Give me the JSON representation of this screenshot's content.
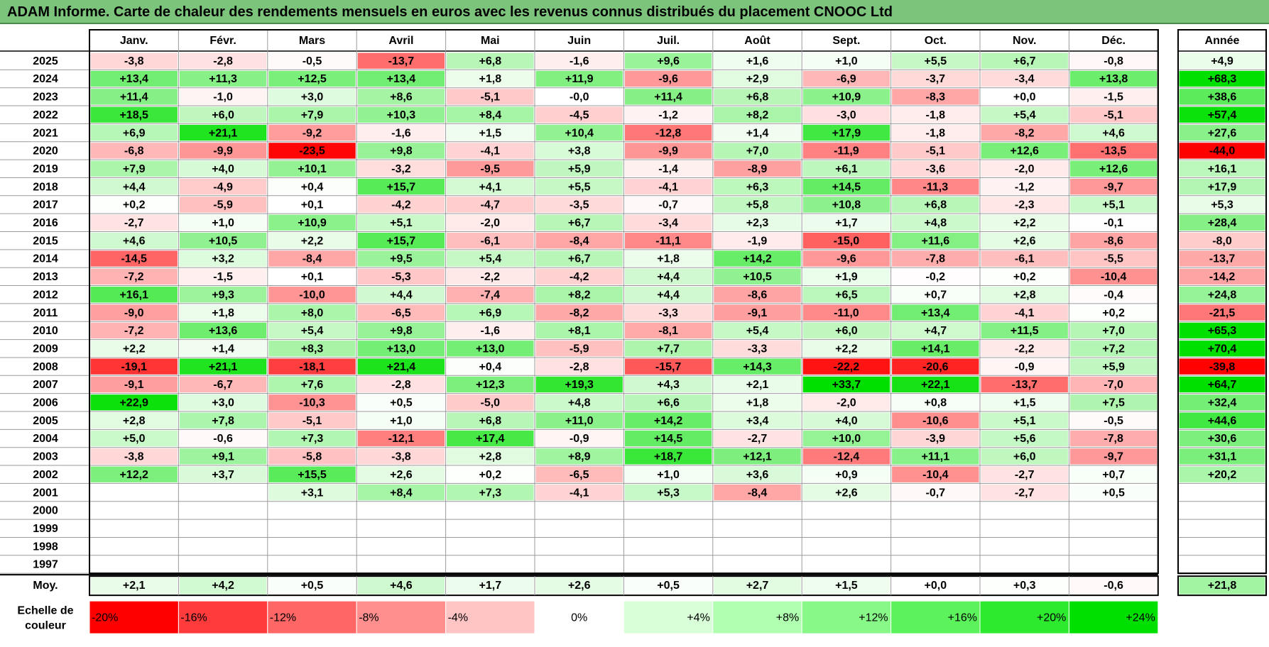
{
  "title": "ADAM Informe. Carte de chaleur des rendements mensuels en euros avec les revenus connus distribués du placement CNOOC Ltd",
  "chart_data": {
    "type": "heatmap",
    "title": "ADAM Informe. Carte de chaleur des rendements mensuels en euros avec les revenus connus distribués du placement CNOOC Ltd",
    "columns": [
      "Janv.",
      "Févr.",
      "Mars",
      "Avril",
      "Mai",
      "Juin",
      "Juil.",
      "Août",
      "Sept.",
      "Oct.",
      "Nov.",
      "Déc."
    ],
    "year_header": "Année",
    "rows": [
      {
        "year": "2025",
        "values": [
          "-3,8",
          "-2,8",
          "-0,5",
          "-13,7",
          "+6,8",
          "-1,6",
          "+9,6",
          "+1,6",
          "+1,0",
          "+5,5",
          "+6,7",
          "-0,8"
        ],
        "annual": "+4,9"
      },
      {
        "year": "2024",
        "values": [
          "+13,4",
          "+11,3",
          "+12,5",
          "+13,4",
          "+1,8",
          "+11,9",
          "-9,6",
          "+2,9",
          "-6,9",
          "-3,7",
          "-3,4",
          "+13,8"
        ],
        "annual": "+68,3"
      },
      {
        "year": "2023",
        "values": [
          "+11,4",
          "-1,0",
          "+3,0",
          "+8,6",
          "-5,1",
          "-0,0",
          "+11,4",
          "+6,8",
          "+10,9",
          "-8,3",
          "+0,0",
          "-1,5"
        ],
        "annual": "+38,6"
      },
      {
        "year": "2022",
        "values": [
          "+18,5",
          "+6,0",
          "+7,9",
          "+10,3",
          "+8,4",
          "-4,5",
          "-1,2",
          "+8,2",
          "-3,0",
          "-1,8",
          "+5,4",
          "-5,1"
        ],
        "annual": "+57,4"
      },
      {
        "year": "2021",
        "values": [
          "+6,9",
          "+21,1",
          "-9,2",
          "-1,6",
          "+1,5",
          "+10,4",
          "-12,8",
          "+1,4",
          "+17,9",
          "-1,8",
          "-8,2",
          "+4,6"
        ],
        "annual": "+27,6"
      },
      {
        "year": "2020",
        "values": [
          "-6,8",
          "-9,9",
          "-23,5",
          "+9,8",
          "-4,1",
          "+3,8",
          "-9,9",
          "+7,0",
          "-11,9",
          "-5,1",
          "+12,6",
          "-13,5"
        ],
        "annual": "-44,0"
      },
      {
        "year": "2019",
        "values": [
          "+7,9",
          "+4,0",
          "+10,1",
          "-3,2",
          "-9,5",
          "+5,9",
          "-1,4",
          "-8,9",
          "+6,1",
          "-3,6",
          "-2,0",
          "+12,6"
        ],
        "annual": "+16,1"
      },
      {
        "year": "2018",
        "values": [
          "+4,4",
          "-4,9",
          "+0,4",
          "+15,7",
          "+4,1",
          "+5,5",
          "-4,1",
          "+6,3",
          "+14,5",
          "-11,3",
          "-1,2",
          "-9,7"
        ],
        "annual": "+17,9"
      },
      {
        "year": "2017",
        "values": [
          "+0,2",
          "-5,9",
          "+0,1",
          "-4,2",
          "-4,7",
          "-3,5",
          "-0,7",
          "+5,8",
          "+10,8",
          "+6,8",
          "-2,3",
          "+5,1"
        ],
        "annual": "+5,3"
      },
      {
        "year": "2016",
        "values": [
          "-2,7",
          "+1,0",
          "+10,9",
          "+5,1",
          "-2,0",
          "+6,7",
          "-3,4",
          "+2,3",
          "+1,7",
          "+4,8",
          "+2,2",
          "-0,1"
        ],
        "annual": "+28,4"
      },
      {
        "year": "2015",
        "values": [
          "+4,6",
          "+10,5",
          "+2,2",
          "+15,7",
          "-6,1",
          "-8,4",
          "-11,1",
          "-1,9",
          "-15,0",
          "+11,6",
          "+2,6",
          "-8,6"
        ],
        "annual": "-8,0"
      },
      {
        "year": "2014",
        "values": [
          "-14,5",
          "+3,2",
          "-8,4",
          "+9,5",
          "+5,4",
          "+6,7",
          "+1,8",
          "+14,2",
          "-9,6",
          "-7,8",
          "-6,1",
          "-5,5"
        ],
        "annual": "-13,7"
      },
      {
        "year": "2013",
        "values": [
          "-7,2",
          "-1,5",
          "+0,1",
          "-5,3",
          "-2,2",
          "-4,2",
          "+4,4",
          "+10,5",
          "+1,9",
          "-0,2",
          "+0,2",
          "-10,4"
        ],
        "annual": "-14,2"
      },
      {
        "year": "2012",
        "values": [
          "+16,1",
          "+9,3",
          "-10,0",
          "+4,4",
          "-7,4",
          "+8,2",
          "+4,4",
          "-8,6",
          "+6,5",
          "+0,7",
          "+2,8",
          "-0,4"
        ],
        "annual": "+24,8"
      },
      {
        "year": "2011",
        "values": [
          "-9,0",
          "+1,8",
          "+8,0",
          "-6,5",
          "+6,9",
          "-8,2",
          "-3,3",
          "-9,1",
          "-11,0",
          "+13,4",
          "-4,1",
          "+0,2"
        ],
        "annual": "-21,5"
      },
      {
        "year": "2010",
        "values": [
          "-7,2",
          "+13,6",
          "+5,4",
          "+9,8",
          "-1,6",
          "+8,1",
          "-8,1",
          "+5,4",
          "+6,0",
          "+4,7",
          "+11,5",
          "+7,0"
        ],
        "annual": "+65,3"
      },
      {
        "year": "2009",
        "values": [
          "+2,2",
          "+1,4",
          "+8,3",
          "+13,0",
          "+13,0",
          "-5,9",
          "+7,7",
          "-3,3",
          "+2,2",
          "+14,1",
          "-2,2",
          "+7,2"
        ],
        "annual": "+70,4"
      },
      {
        "year": "2008",
        "values": [
          "-19,1",
          "+21,1",
          "-18,1",
          "+21,4",
          "+0,4",
          "-2,8",
          "-15,7",
          "+14,3",
          "-22,2",
          "-20,6",
          "-0,9",
          "+5,9"
        ],
        "annual": "-39,8"
      },
      {
        "year": "2007",
        "values": [
          "-9,1",
          "-6,7",
          "+7,6",
          "-2,8",
          "+12,3",
          "+19,3",
          "+4,3",
          "+2,1",
          "+33,7",
          "+22,1",
          "-13,7",
          "-7,0"
        ],
        "annual": "+64,7"
      },
      {
        "year": "2006",
        "values": [
          "+22,9",
          "+3,0",
          "-10,3",
          "+0,5",
          "-5,0",
          "+4,8",
          "+6,6",
          "+1,8",
          "-2,0",
          "+0,8",
          "+1,5",
          "+7,5"
        ],
        "annual": "+32,4"
      },
      {
        "year": "2005",
        "values": [
          "+2,8",
          "+7,8",
          "-5,1",
          "+1,0",
          "+6,8",
          "+11,0",
          "+14,2",
          "+3,4",
          "+4,0",
          "-10,6",
          "+5,1",
          "-0,5"
        ],
        "annual": "+44,6"
      },
      {
        "year": "2004",
        "values": [
          "+5,0",
          "-0,6",
          "+7,3",
          "-12,1",
          "+17,4",
          "-0,9",
          "+14,5",
          "-2,7",
          "+10,0",
          "-3,9",
          "+5,6",
          "-7,8"
        ],
        "annual": "+30,6"
      },
      {
        "year": "2003",
        "values": [
          "-3,8",
          "+9,1",
          "-5,8",
          "-3,8",
          "+2,8",
          "+8,9",
          "+18,7",
          "+12,1",
          "-12,4",
          "+11,1",
          "+6,0",
          "-9,7"
        ],
        "annual": "+31,1"
      },
      {
        "year": "2002",
        "values": [
          "+12,2",
          "+3,7",
          "+15,5",
          "+2,6",
          "+0,2",
          "-6,5",
          "+1,0",
          "+3,6",
          "+0,9",
          "-10,4",
          "-2,7",
          "+0,7"
        ],
        "annual": "+20,2"
      },
      {
        "year": "2001",
        "values": [
          "",
          "",
          "+3,1",
          "+8,4",
          "+7,3",
          "-4,1",
          "+5,3",
          "-8,4",
          "+2,6",
          "-0,7",
          "-2,7",
          "+0,5"
        ],
        "annual": ""
      },
      {
        "year": "2000",
        "values": [
          "",
          "",
          "",
          "",
          "",
          "",
          "",
          "",
          "",
          "",
          "",
          ""
        ],
        "annual": ""
      },
      {
        "year": "1999",
        "values": [
          "",
          "",
          "",
          "",
          "",
          "",
          "",
          "",
          "",
          "",
          "",
          ""
        ],
        "annual": ""
      },
      {
        "year": "1998",
        "values": [
          "",
          "",
          "",
          "",
          "",
          "",
          "",
          "",
          "",
          "",
          "",
          ""
        ],
        "annual": ""
      },
      {
        "year": "1997",
        "values": [
          "",
          "",
          "",
          "",
          "",
          "",
          "",
          "",
          "",
          "",
          "",
          ""
        ],
        "annual": ""
      }
    ],
    "average": {
      "label": "Moy.",
      "values": [
        "+2,1",
        "+4,2",
        "+0,5",
        "+4,6",
        "+1,7",
        "+2,6",
        "+0,5",
        "+2,7",
        "+1,5",
        "+0,0",
        "+0,3",
        "-0,6"
      ],
      "annual": "+21,8"
    },
    "scale": {
      "label_line1": "Echelle de",
      "label_line2": "couleur",
      "items": [
        {
          "label": "-20%",
          "value": -20,
          "color": "#ff0000"
        },
        {
          "label": "-16%",
          "value": -16,
          "color": "#ff3b3b"
        },
        {
          "label": "-12%",
          "value": -12,
          "color": "#ff6666"
        },
        {
          "label": "-8%",
          "value": -8,
          "color": "#ff8f8f"
        },
        {
          "label": "-4%",
          "value": -4,
          "color": "#ffc4c4"
        },
        {
          "label": "0%",
          "value": 0,
          "color": "#ffffff"
        },
        {
          "label": "+4%",
          "value": 4,
          "color": "#d8ffd8"
        },
        {
          "label": "+8%",
          "value": 8,
          "color": "#b0ffb0"
        },
        {
          "label": "+12%",
          "value": 12,
          "color": "#88f888"
        },
        {
          "label": "+16%",
          "value": 16,
          "color": "#5cf25c"
        },
        {
          "label": "+20%",
          "value": 20,
          "color": "#2eea2e"
        },
        {
          "label": "+24%",
          "value": 24,
          "color": "#00e000"
        }
      ]
    }
  }
}
